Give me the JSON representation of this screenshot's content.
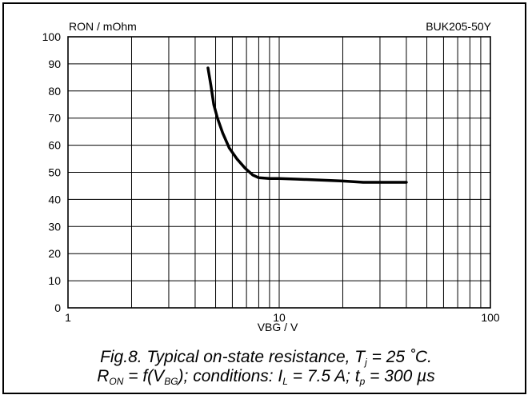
{
  "chart_data": {
    "type": "line",
    "ylabel": "RON / mOhm",
    "xlabel": "VBG / V",
    "part_number": "BUK205-50Y",
    "x_scale": "log",
    "xlim": [
      1,
      100
    ],
    "ylim": [
      0,
      100
    ],
    "y_ticks": [
      "0",
      "10",
      "20",
      "30",
      "40",
      "50",
      "60",
      "70",
      "80",
      "90",
      "100"
    ],
    "x_ticks": [
      "1",
      "10",
      "100"
    ],
    "grid": true,
    "series": [
      {
        "x": [
          4.6,
          4.75,
          4.9,
          5.1,
          5.4,
          5.8,
          6.3,
          6.9,
          7.5,
          8.0,
          9.0,
          10,
          12,
          15,
          20,
          25,
          30,
          35,
          40
        ],
        "y": [
          88.5,
          82,
          75,
          70,
          64.5,
          59,
          55,
          51.5,
          49,
          48,
          47.7,
          47.7,
          47.5,
          47.2,
          46.8,
          46.3,
          46.3,
          46.3,
          46.3
        ]
      }
    ]
  },
  "caption": {
    "line1": {
      "prefix": "Fig.8.   Typical on-state resistance, T",
      "sub": "j",
      "suffix": " = 25 ˚C."
    },
    "line2": {
      "a": "R",
      "a_sub": "ON",
      "b": " = f(V",
      "b_sub": "BG",
      "c": "); conditions: I",
      "c_sub": "L",
      "d": " = 7.5 A; t",
      "d_sub": "p",
      "e": " = 300 µs"
    }
  }
}
